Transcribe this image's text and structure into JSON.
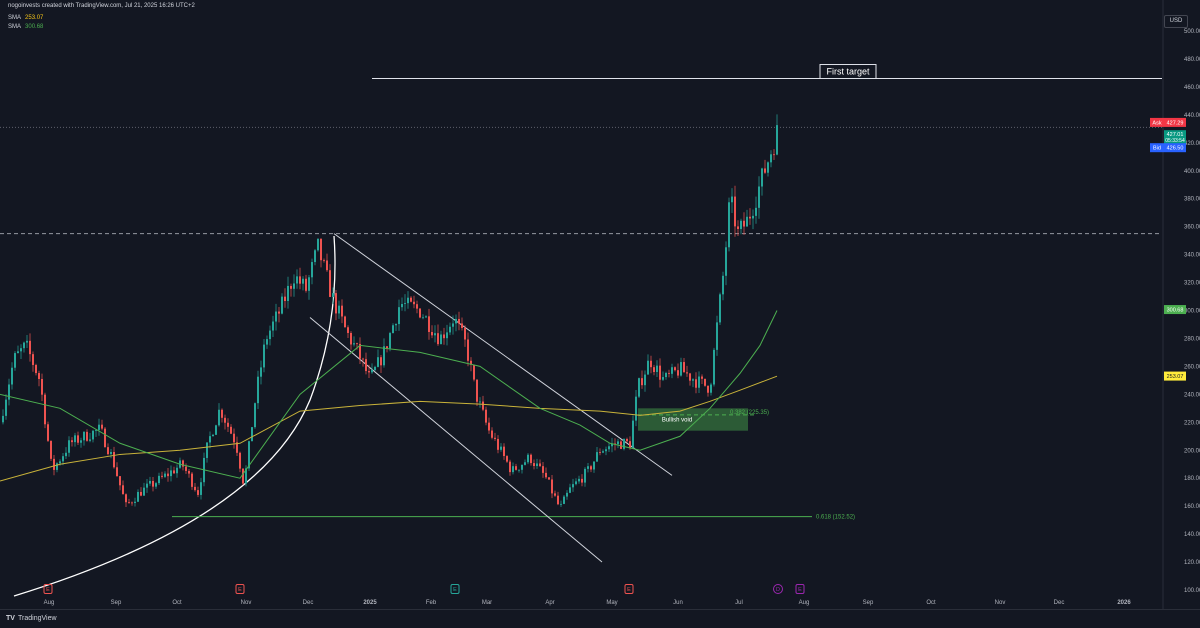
{
  "header": {
    "title": "nogoinvests created with TradingView.com, Jul 21, 2025 16:26 UTC+2",
    "sma1_label": "SMA",
    "sma1_value": "253.07",
    "sma1_color": "#f5c518",
    "sma2_label": "SMA",
    "sma2_value": "300.68",
    "sma2_color": "#4caf50"
  },
  "currency": "USD",
  "footer": {
    "logo": "TV",
    "brand": "TradingView"
  },
  "price_tags": {
    "ask_label": "Ask",
    "ask_value": "427.29",
    "last_value": "427.01",
    "countdown": "05:33:54",
    "bid_label": "Bid",
    "bid_value": "426.50",
    "sma_long_value": "300.68",
    "sma_short_value": "253.07"
  },
  "chart_data": {
    "type": "candlestick",
    "title": "",
    "yaxis": {
      "min": 100,
      "max": 500,
      "ticks": [
        100,
        120,
        140,
        160,
        180,
        200,
        220,
        240,
        260,
        280,
        300,
        320,
        340,
        360,
        380,
        400,
        420,
        440,
        460,
        480,
        500
      ],
      "side": "right"
    },
    "xaxis": {
      "tick_labels": [
        "Aug",
        "Sep",
        "Oct",
        "Nov",
        "Dec",
        "2025",
        "Feb",
        "Mar",
        "Apr",
        "May",
        "Jun",
        "Jul",
        "Aug",
        "Sep",
        "Oct",
        "Nov",
        "Dec",
        "2026"
      ]
    },
    "grid": false,
    "legend": "none",
    "colors": {
      "up": "#26a69a",
      "down": "#ef5350",
      "sma_long": "#4caf50",
      "sma_short": "#c9b33a"
    },
    "price_path": [
      [
        0,
        220
      ],
      [
        14,
        265
      ],
      [
        26,
        275
      ],
      [
        40,
        250
      ],
      [
        52,
        185
      ],
      [
        70,
        205
      ],
      [
        100,
        215
      ],
      [
        112,
        195
      ],
      [
        126,
        160
      ],
      [
        140,
        170
      ],
      [
        162,
        180
      ],
      [
        182,
        190
      ],
      [
        198,
        170
      ],
      [
        208,
        205
      ],
      [
        220,
        230
      ],
      [
        236,
        205
      ],
      [
        244,
        175
      ],
      [
        256,
        240
      ],
      [
        266,
        280
      ],
      [
        280,
        300
      ],
      [
        294,
        325
      ],
      [
        306,
        315
      ],
      [
        318,
        345
      ],
      [
        332,
        310
      ],
      [
        346,
        285
      ],
      [
        358,
        270
      ],
      [
        370,
        250
      ],
      [
        384,
        270
      ],
      [
        400,
        305
      ],
      [
        420,
        300
      ],
      [
        440,
        280
      ],
      [
        454,
        295
      ],
      [
        466,
        275
      ],
      [
        476,
        240
      ],
      [
        488,
        215
      ],
      [
        500,
        200
      ],
      [
        512,
        185
      ],
      [
        530,
        195
      ],
      [
        546,
        180
      ],
      [
        560,
        158
      ],
      [
        570,
        172
      ],
      [
        588,
        185
      ],
      [
        600,
        200
      ],
      [
        616,
        205
      ],
      [
        630,
        205
      ],
      [
        638,
        245
      ],
      [
        650,
        265
      ],
      [
        664,
        250
      ],
      [
        680,
        258
      ],
      [
        700,
        248
      ],
      [
        710,
        245
      ],
      [
        718,
        295
      ],
      [
        724,
        330
      ],
      [
        730,
        380
      ],
      [
        738,
        355
      ],
      [
        748,
        365
      ],
      [
        760,
        390
      ],
      [
        770,
        412
      ],
      [
        777,
        427
      ]
    ],
    "sma_long_path": [
      [
        0,
        240
      ],
      [
        60,
        230
      ],
      [
        120,
        205
      ],
      [
        180,
        190
      ],
      [
        240,
        180
      ],
      [
        300,
        240
      ],
      [
        360,
        275
      ],
      [
        420,
        270
      ],
      [
        480,
        260
      ],
      [
        540,
        230
      ],
      [
        580,
        218
      ],
      [
        610,
        205
      ],
      [
        640,
        200
      ],
      [
        680,
        210
      ],
      [
        710,
        230
      ],
      [
        740,
        255
      ],
      [
        760,
        275
      ],
      [
        777,
        300
      ]
    ],
    "sma_short_path": [
      [
        0,
        178
      ],
      [
        60,
        190
      ],
      [
        120,
        197
      ],
      [
        180,
        200
      ],
      [
        240,
        205
      ],
      [
        300,
        228
      ],
      [
        360,
        232
      ],
      [
        420,
        235
      ],
      [
        480,
        233
      ],
      [
        540,
        230
      ],
      [
        600,
        228
      ],
      [
        640,
        225
      ],
      [
        680,
        228
      ],
      [
        710,
        235
      ],
      [
        740,
        243
      ],
      [
        777,
        253
      ]
    ],
    "annotations": [
      {
        "type": "hline",
        "label": "First target",
        "y": 466,
        "x1": 372,
        "x2": 1162,
        "color": "#e0e3eb"
      },
      {
        "type": "hline",
        "label": "",
        "y": 355,
        "style": "dashed",
        "color": "#9598a1"
      },
      {
        "type": "hline",
        "label": "",
        "y": 431,
        "style": "dotted",
        "color": "#5d606b"
      },
      {
        "type": "hline",
        "label": "0.618 (152.52)",
        "y": 152.52,
        "x1": 172,
        "x2": 812,
        "color": "#4caf50"
      },
      {
        "type": "hline",
        "label": "0.382 (225.35)",
        "y": 225.35,
        "x1": 638,
        "x2": 756,
        "style": "dashed",
        "color": "#4caf50"
      },
      {
        "type": "zone",
        "label": "Bullish void",
        "y_top": 230,
        "y_bottom": 214,
        "x1": 638,
        "x2": 748,
        "color": "#4caf50"
      },
      {
        "type": "trendline",
        "label": "",
        "from": [
          334,
          355
        ],
        "to": [
          672,
          182
        ],
        "color": "#d1d4dc"
      },
      {
        "type": "trendline",
        "label": "",
        "from": [
          310,
          295
        ],
        "to": [
          602,
          120
        ],
        "color": "#d1d4dc"
      }
    ],
    "event_markers": [
      {
        "label": "E",
        "x": 48,
        "color": "#ef5350"
      },
      {
        "label": "E",
        "x": 240,
        "color": "#ef5350"
      },
      {
        "label": "E",
        "x": 455,
        "color": "#26a69a"
      },
      {
        "label": "E",
        "x": 629,
        "color": "#ef5350"
      },
      {
        "label": "D",
        "x": 778,
        "color": "#9c27b0"
      },
      {
        "label": "E",
        "x": 800,
        "color": "#9c27b0"
      }
    ]
  }
}
